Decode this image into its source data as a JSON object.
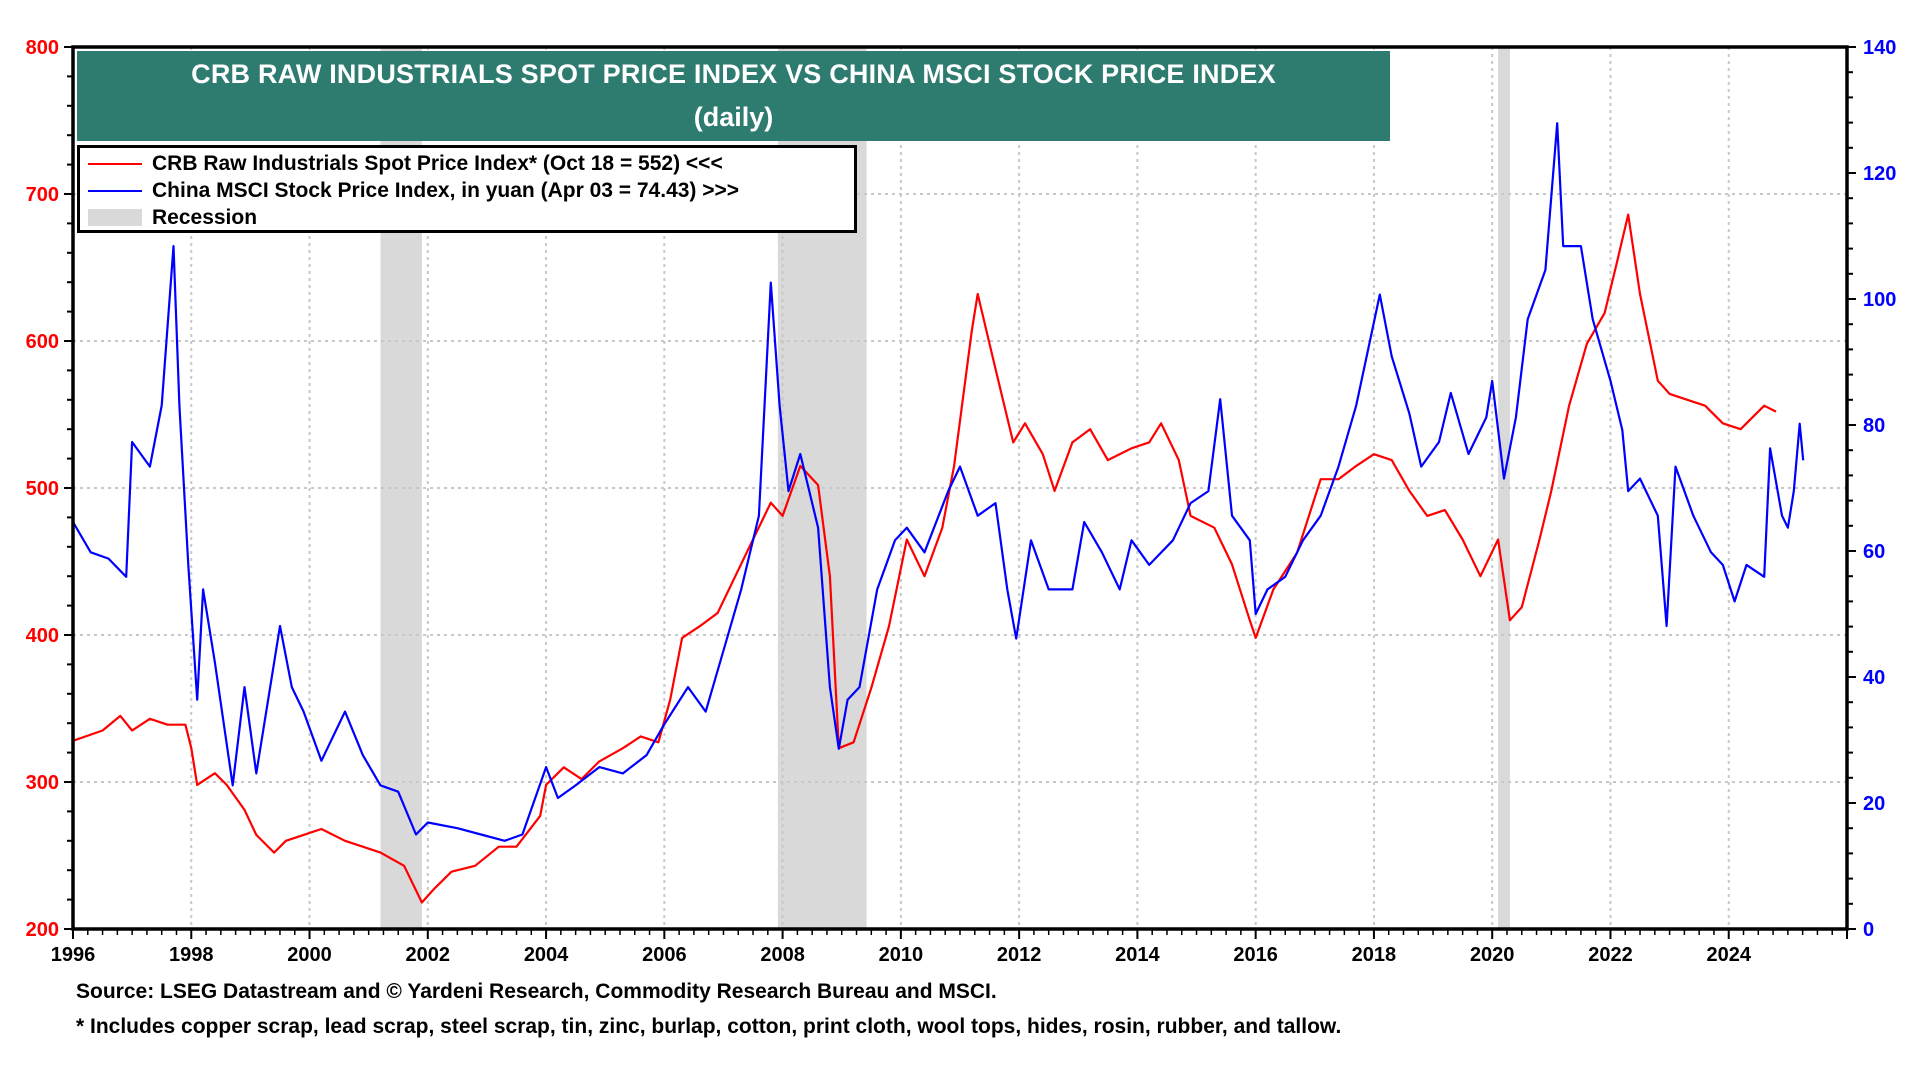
{
  "chart_data": {
    "type": "line",
    "title": "CRB RAW INDUSTRIALS SPOT PRICE INDEX VS CHINA MSCI STOCK PRICE INDEX",
    "subtitle": "(daily)",
    "xlabel": "",
    "x_ticks": [
      "1996",
      "1998",
      "2000",
      "2002",
      "2004",
      "2006",
      "2008",
      "2010",
      "2012",
      "2014",
      "2016",
      "2018",
      "2020",
      "2022",
      "2024"
    ],
    "xlim": [
      1996,
      2026
    ],
    "left_axis": {
      "label": "",
      "ylim": [
        200,
        800
      ],
      "ticks": [
        "200",
        "300",
        "400",
        "500",
        "600",
        "700",
        "800"
      ],
      "color": "#ff0000"
    },
    "right_axis": {
      "label": "",
      "ylim": [
        0,
        140
      ],
      "ticks": [
        "0",
        "20",
        "40",
        "60",
        "80",
        "100",
        "120",
        "140"
      ],
      "color": "#0000ff"
    },
    "grid": true,
    "legend_position": "top-left",
    "recessions": [
      {
        "start": 2001.2,
        "end": 2001.9
      },
      {
        "start": 2007.92,
        "end": 2009.42
      },
      {
        "start": 2020.1,
        "end": 2020.3
      }
    ],
    "series": [
      {
        "name": "CRB Raw Industrials Spot Price Index* (Oct 18 = 552) <<<",
        "axis": "left",
        "color": "#ff0000",
        "x": [
          1996.0,
          1996.5,
          1996.8,
          1997.0,
          1997.3,
          1997.6,
          1997.9,
          1998.0,
          1998.1,
          1998.4,
          1998.6,
          1998.9,
          1999.1,
          1999.4,
          1999.6,
          1999.9,
          2000.2,
          2000.6,
          2000.9,
          2001.2,
          2001.6,
          2001.9,
          2002.1,
          2002.4,
          2002.8,
          2003.2,
          2003.5,
          2003.9,
          2004.0,
          2004.3,
          2004.6,
          2004.9,
          2005.3,
          2005.6,
          2005.9,
          2006.1,
          2006.3,
          2006.6,
          2006.9,
          2007.2,
          2007.5,
          2007.8,
          2008.0,
          2008.3,
          2008.6,
          2008.8,
          2008.95,
          2009.2,
          2009.5,
          2009.8,
          2010.1,
          2010.4,
          2010.7,
          2010.9,
          2011.2,
          2011.3,
          2011.6,
          2011.9,
          2012.1,
          2012.4,
          2012.6,
          2012.9,
          2013.2,
          2013.5,
          2013.9,
          2014.2,
          2014.4,
          2014.7,
          2014.9,
          2015.3,
          2015.6,
          2015.9,
          2016.0,
          2016.3,
          2016.7,
          2017.1,
          2017.4,
          2017.7,
          2018.0,
          2018.3,
          2018.6,
          2018.9,
          2019.2,
          2019.5,
          2019.8,
          2020.1,
          2020.3,
          2020.5,
          2020.8,
          2021.0,
          2021.3,
          2021.6,
          2021.9,
          2022.1,
          2022.3,
          2022.5,
          2022.8,
          2023.0,
          2023.3,
          2023.6,
          2023.9,
          2024.2,
          2024.6,
          2024.8
        ],
        "values": [
          328,
          335,
          345,
          335,
          343,
          339,
          339,
          323,
          298,
          306,
          298,
          281,
          264,
          252,
          260,
          264,
          268,
          260,
          256,
          252,
          243,
          218,
          227,
          239,
          243,
          256,
          256,
          277,
          298,
          310,
          302,
          314,
          323,
          331,
          327,
          356,
          398,
          406,
          415,
          440,
          465,
          490,
          481,
          515,
          502,
          440,
          323,
          327,
          364,
          406,
          465,
          440,
          473,
          515,
          607,
          632,
          581,
          531,
          544,
          523,
          498,
          531,
          540,
          519,
          527,
          531,
          544,
          519,
          481,
          473,
          448,
          410,
          398,
          431,
          456,
          506,
          506,
          515,
          523,
          519,
          498,
          481,
          485,
          465,
          440,
          465,
          410,
          419,
          465,
          498,
          556,
          598,
          619,
          652,
          686,
          632,
          573,
          564,
          560,
          556,
          544,
          540,
          556,
          552
        ]
      },
      {
        "name": "China MSCI Stock Price Index, in yuan (Apr 03 = 74.43) >>>",
        "axis": "right",
        "color": "#0000ff",
        "x": [
          1996.0,
          1996.3,
          1996.6,
          1996.9,
          1997.0,
          1997.3,
          1997.5,
          1997.7,
          1997.8,
          1997.95,
          1998.1,
          1998.2,
          1998.4,
          1998.7,
          1998.9,
          1999.1,
          1999.5,
          1999.7,
          1999.9,
          2000.2,
          2000.6,
          2000.9,
          2001.2,
          2001.5,
          2001.8,
          2002.0,
          2002.5,
          2002.9,
          2003.3,
          2003.6,
          2004.0,
          2004.2,
          2004.5,
          2004.9,
          2005.3,
          2005.7,
          2006.0,
          2006.4,
          2006.7,
          2007.0,
          2007.3,
          2007.6,
          2007.8,
          2007.95,
          2008.1,
          2008.3,
          2008.6,
          2008.8,
          2008.95,
          2009.1,
          2009.3,
          2009.6,
          2009.9,
          2010.1,
          2010.4,
          2010.8,
          2011.0,
          2011.3,
          2011.6,
          2011.8,
          2011.95,
          2012.2,
          2012.5,
          2012.9,
          2013.1,
          2013.4,
          2013.7,
          2013.9,
          2014.2,
          2014.6,
          2014.9,
          2015.2,
          2015.4,
          2015.6,
          2015.9,
          2016.0,
          2016.2,
          2016.5,
          2016.8,
          2017.1,
          2017.4,
          2017.7,
          2018.1,
          2018.3,
          2018.6,
          2018.8,
          2019.1,
          2019.3,
          2019.6,
          2019.9,
          2020.0,
          2020.2,
          2020.4,
          2020.6,
          2020.9,
          2021.1,
          2021.2,
          2021.5,
          2021.7,
          2022.0,
          2022.2,
          2022.3,
          2022.5,
          2022.8,
          2022.95,
          2023.1,
          2023.4,
          2023.7,
          2023.9,
          2024.1,
          2024.3,
          2024.6,
          2024.7,
          2024.9,
          2025.0,
          2025.1,
          2025.2,
          2025.26
        ],
        "values": [
          64.6,
          59.8,
          58.8,
          55.9,
          77.3,
          73.4,
          83.1,
          108.4,
          83.1,
          57.8,
          36.4,
          53.9,
          42.3,
          22.8,
          38.4,
          24.7,
          48.1,
          38.4,
          34.5,
          26.7,
          34.5,
          27.6,
          22.8,
          21.8,
          15.0,
          16.9,
          16.0,
          15.0,
          14.0,
          15.0,
          25.7,
          20.8,
          22.8,
          25.7,
          24.7,
          27.6,
          32.5,
          38.4,
          34.5,
          44.2,
          53.9,
          65.6,
          102.6,
          83.1,
          69.5,
          75.4,
          63.7,
          38.4,
          28.6,
          36.4,
          38.4,
          53.9,
          61.7,
          63.7,
          59.8,
          69.5,
          73.4,
          65.6,
          67.6,
          53.9,
          46.1,
          61.7,
          53.9,
          53.9,
          64.6,
          59.8,
          53.9,
          61.7,
          57.8,
          61.7,
          67.6,
          69.5,
          84.1,
          65.6,
          61.7,
          50.0,
          53.9,
          55.9,
          61.7,
          65.6,
          73.4,
          83.1,
          100.7,
          90.9,
          81.8,
          73.4,
          77.3,
          85.1,
          75.4,
          81.2,
          87.0,
          71.5,
          81.2,
          96.8,
          104.6,
          127.9,
          108.4,
          108.4,
          96.8,
          87.0,
          79.2,
          69.5,
          71.5,
          65.6,
          48.1,
          73.4,
          65.6,
          59.8,
          57.8,
          52.0,
          57.8,
          55.9,
          76.3,
          65.6,
          63.7,
          69.5,
          80.2,
          74.4
        ]
      }
    ],
    "legend": [
      {
        "label": "CRB Raw Industrials Spot Price Index* (Oct 18 = 552) <<<",
        "kind": "line",
        "color": "#ff0000"
      },
      {
        "label": "China MSCI Stock Price Index, in yuan (Apr 03 = 74.43) >>>",
        "kind": "line",
        "color": "#0000ff"
      },
      {
        "label": "Recession",
        "kind": "box",
        "color": "#d9d9d9"
      }
    ],
    "footnotes": [
      "Source: LSEG Datastream and © Yardeni Research, Commodity Research Bureau and MSCI.",
      "* Includes copper scrap, lead scrap, steel scrap, tin, zinc, burlap, cotton, print cloth, wool tops, hides, rosin, rubber, and tallow."
    ]
  },
  "colors": {
    "title_bg": "#2e7b70",
    "recession": "#d9d9d9",
    "grid": "#c8c8c8"
  }
}
